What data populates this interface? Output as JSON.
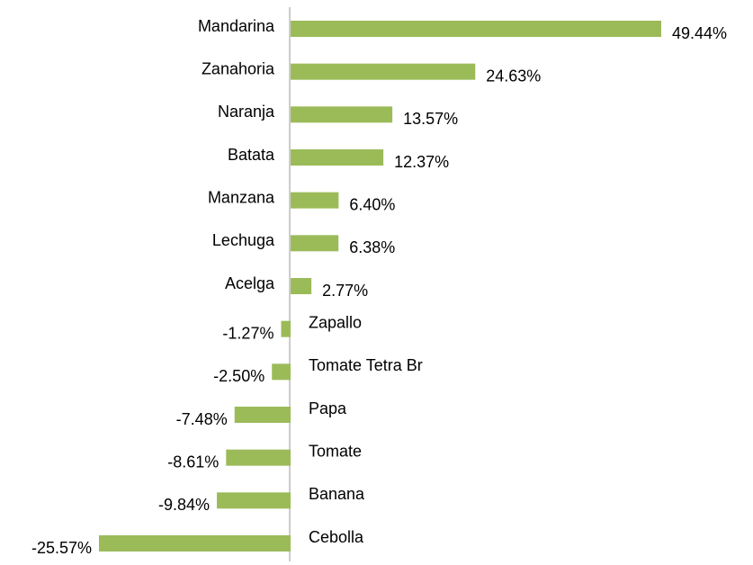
{
  "chart_data": {
    "type": "bar",
    "orientation": "horizontal",
    "color": "#9bbb59",
    "categories": [
      "Mandarina",
      "Zanahoria",
      "Naranja",
      "Batata",
      "Manzana",
      "Lechuga",
      "Acelga",
      "Zapallo",
      "Tomate Tetra Br",
      "Papa",
      "Tomate",
      "Banana",
      "Cebolla"
    ],
    "values": [
      49.44,
      24.63,
      13.57,
      12.37,
      6.4,
      6.38,
      2.77,
      -1.27,
      -2.5,
      -7.48,
      -8.61,
      -9.84,
      -25.57
    ],
    "value_labels": [
      "49.44%",
      "24.63%",
      "13.57%",
      "12.37%",
      "6.40%",
      "6.38%",
      "2.77%",
      "-1.27%",
      "-2.50%",
      "-7.48%",
      "-8.61%",
      "-9.84%",
      "-25.57%"
    ]
  }
}
